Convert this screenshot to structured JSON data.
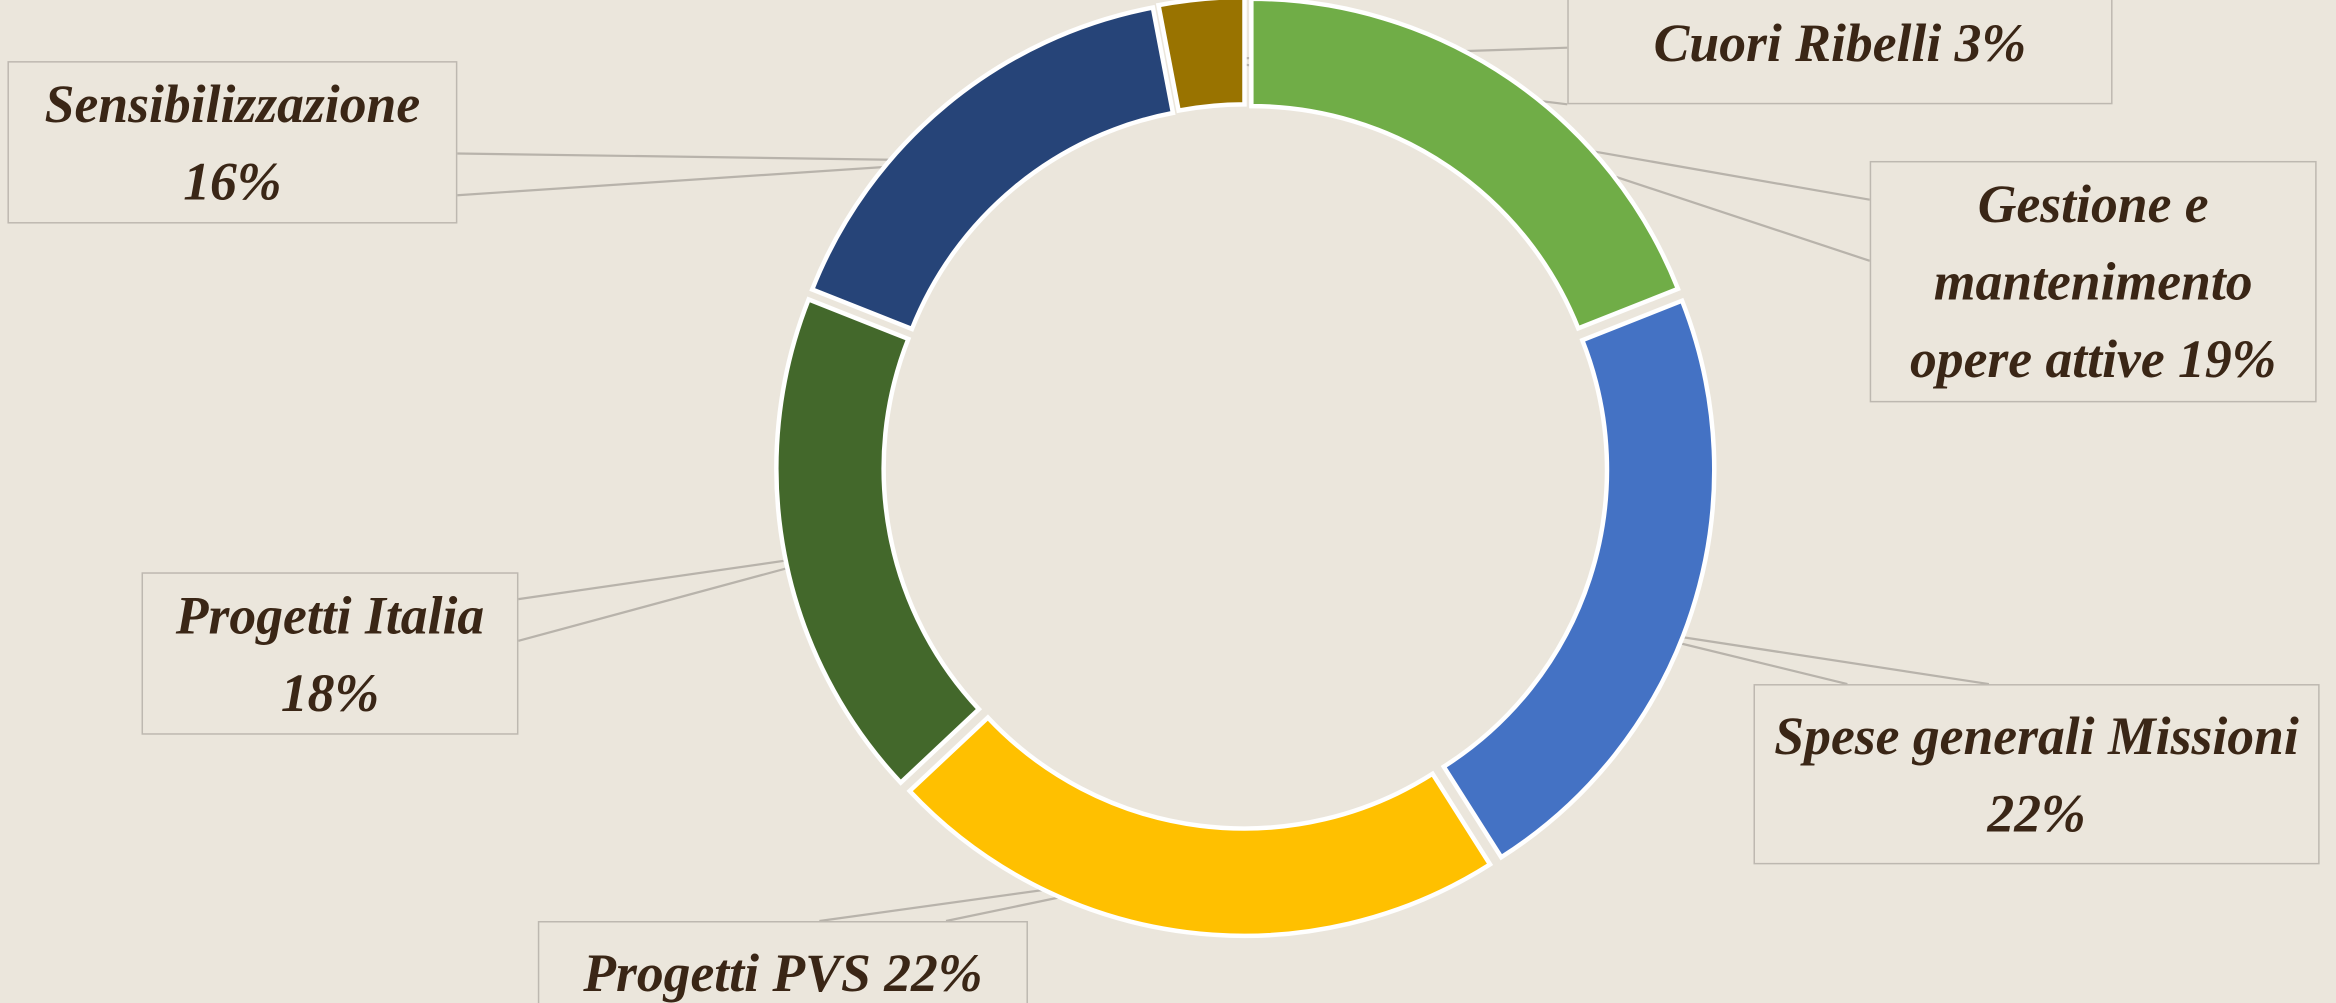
{
  "chart_data": {
    "type": "donut",
    "categories": [
      "Gestione e mantenimento opere attive",
      "Spese generali Missioni",
      "Progetti PVS",
      "Progetti Italia",
      "Sensibilizzazione",
      "Cuori Ribelli"
    ],
    "values": [
      19,
      22,
      22,
      18,
      16,
      3
    ],
    "value_labels": [
      "19%",
      "22%",
      "22%",
      "18%",
      "16%",
      "3%"
    ],
    "colors": [
      "#70ad47",
      "#4472c4",
      "#ffc000",
      "#43682b",
      "#264478",
      "#997300"
    ]
  }
}
